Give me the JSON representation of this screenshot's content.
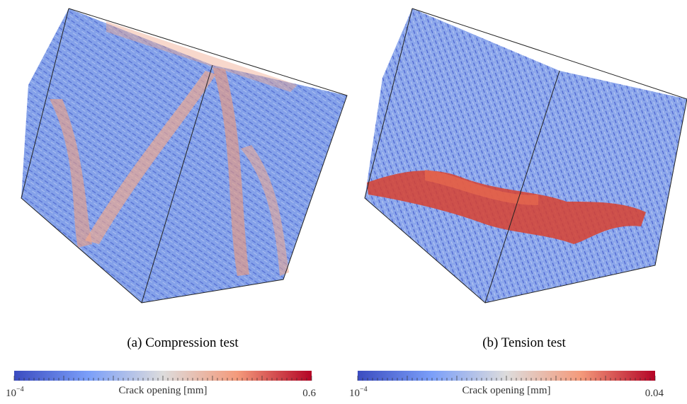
{
  "panels": [
    {
      "caption": "(a) Compression test",
      "colorbar": {
        "label": "Crack opening [mm]",
        "min": {
          "base": "10",
          "exponent": "−4"
        },
        "max": "0.6"
      }
    },
    {
      "caption": "(b) Tension test",
      "colorbar": {
        "label": "Crack opening [mm]",
        "min": {
          "base": "10",
          "exponent": "−4"
        },
        "max": "0.04"
      }
    }
  ]
}
